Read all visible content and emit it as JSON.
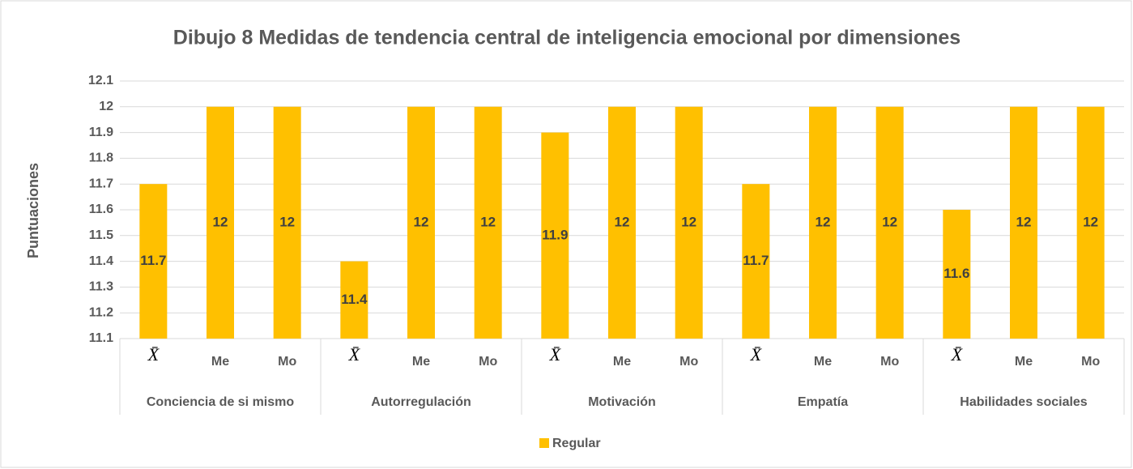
{
  "chart_data": {
    "type": "bar",
    "title": "Dibujo 8 Medidas de tendencia central de inteligencia emocional por dimensiones",
    "y_label": "Puntuaciones",
    "categories": [
      "X̄",
      "Me",
      "Mo",
      "X̄",
      "Me",
      "Mo",
      "X̄",
      "Me",
      "Mo",
      "X̄",
      "Me",
      "Mo",
      "X̄",
      "Me",
      "Mo"
    ],
    "category_groups": [
      "Conciencia de si mismo",
      "Autorregulación",
      "Motivación",
      "Empatía",
      "Habilidades sociales"
    ],
    "series": [
      {
        "name": "Regular",
        "color": "#FFC000",
        "values": [
          11.7,
          12,
          12,
          11.4,
          12,
          12,
          11.9,
          12,
          12,
          11.7,
          12,
          12,
          11.6,
          12,
          12
        ]
      }
    ],
    "ylim": [
      11.1,
      12.1
    ],
    "yticks": [
      11.1,
      11.2,
      11.3,
      11.4,
      11.5,
      11.6,
      11.7,
      11.8,
      11.9,
      12,
      12.1
    ],
    "grid": true,
    "legend": "bottom"
  }
}
